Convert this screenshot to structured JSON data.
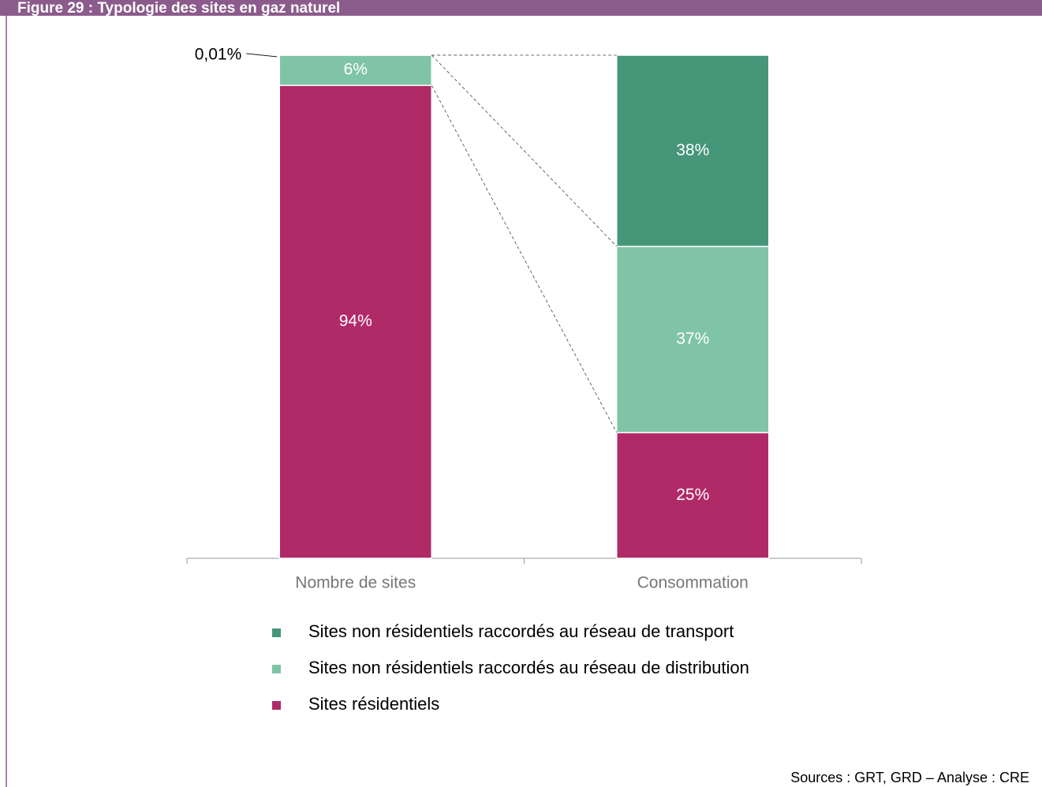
{
  "chart_data": {
    "type": "stacked_bar",
    "title": "Figure 29 : Typologie des sites en gaz naturel",
    "categories": [
      "Nombre de sites",
      "Consommation"
    ],
    "series": [
      {
        "name": "Sites résidentiels",
        "color": "#b02a68",
        "values": [
          94,
          25
        ],
        "value_labels": [
          "94%",
          "25%"
        ]
      },
      {
        "name": "Sites non résidentiels raccordés au réseau de distribution",
        "color": "#80c4a8",
        "values": [
          6,
          37
        ],
        "value_labels": [
          "6%",
          "37%"
        ]
      },
      {
        "name": "Sites non résidentiels raccordés au réseau de transport",
        "color": "#46967a",
        "values": [
          0.01,
          38
        ],
        "value_labels": [
          "0,01%",
          "38%"
        ]
      }
    ],
    "ylim": [
      0,
      100
    ],
    "source": "Sources : GRT, GRD – Analyse : CRE"
  }
}
